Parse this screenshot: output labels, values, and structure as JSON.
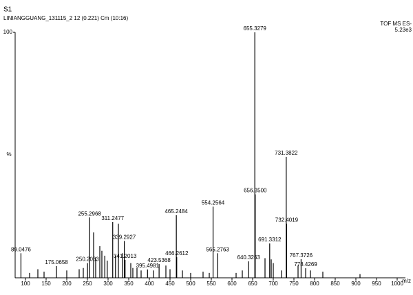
{
  "chart_data": {
    "type": "stick",
    "title": "S1",
    "subtitle": "LINIANGGUANG_131115_2 12 (0.221) Cm (10:16)",
    "annotations": [
      "TOF MS ES-",
      "5.23e3"
    ],
    "ylabel": "%",
    "xlabel": "m/z",
    "xlim": [
      75,
      1020
    ],
    "ylim": [
      0,
      100
    ],
    "xticks": [
      100,
      150,
      200,
      250,
      300,
      350,
      400,
      450,
      500,
      550,
      600,
      650,
      700,
      750,
      800,
      850,
      900,
      950,
      1000
    ],
    "yticks": [
      100
    ],
    "color": "#000000",
    "series": [
      {
        "show_labels": true,
        "x": [
          89.0476,
          175.0658,
          250.2033,
          255.2968,
          311.2477,
          339.2927,
          341.2013,
          395.4981,
          423.5368,
          465.2484,
          466.2612,
          554.2564,
          565.2763,
          640.3263,
          655.3279,
          656.35,
          691.3312,
          731.3822,
          732.4019,
          767.3726,
          778.4269
        ],
        "x_labels": [
          "89.0476",
          "175.0658",
          "250.2033",
          "255.2968",
          "311.2477",
          "339.2927",
          "341.2013",
          "395.4981",
          "423.5368",
          "465.2484",
          "466.2612",
          "554.2564",
          "565.2763",
          "640.3263",
          "655.3279",
          "656.3500",
          "691.3312",
          "731.3822",
          "732.4019",
          "767.3726",
          "778.4269"
        ],
        "values": [
          10,
          4.8,
          6,
          24.6,
          22.7,
          15,
          7.3,
          3.4,
          5.6,
          25.5,
          8.4,
          29,
          10,
          6.7,
          100,
          34,
          14,
          49.3,
          22,
          7.6,
          3.9
        ]
      },
      {
        "show_labels": false,
        "x": [
          110,
          130,
          145,
          200,
          230,
          240,
          265,
          270,
          280,
          285,
          292,
          298,
          318,
          325,
          335,
          355,
          360,
          370,
          380,
          410,
          440,
          450,
          480,
          500,
          530,
          545,
          610,
          625,
          680,
          695,
          700,
          720,
          760,
          790,
          820,
          910
        ],
        "values": [
          2,
          3.5,
          2.5,
          3,
          3.5,
          4,
          18.5,
          8,
          12.9,
          11,
          9,
          7,
          9,
          22,
          10,
          6,
          4,
          4,
          3,
          3,
          5,
          3.5,
          3,
          2,
          2.5,
          2,
          2,
          3,
          8,
          7.5,
          6,
          3,
          5,
          3,
          2.5,
          1.5
        ]
      }
    ]
  }
}
